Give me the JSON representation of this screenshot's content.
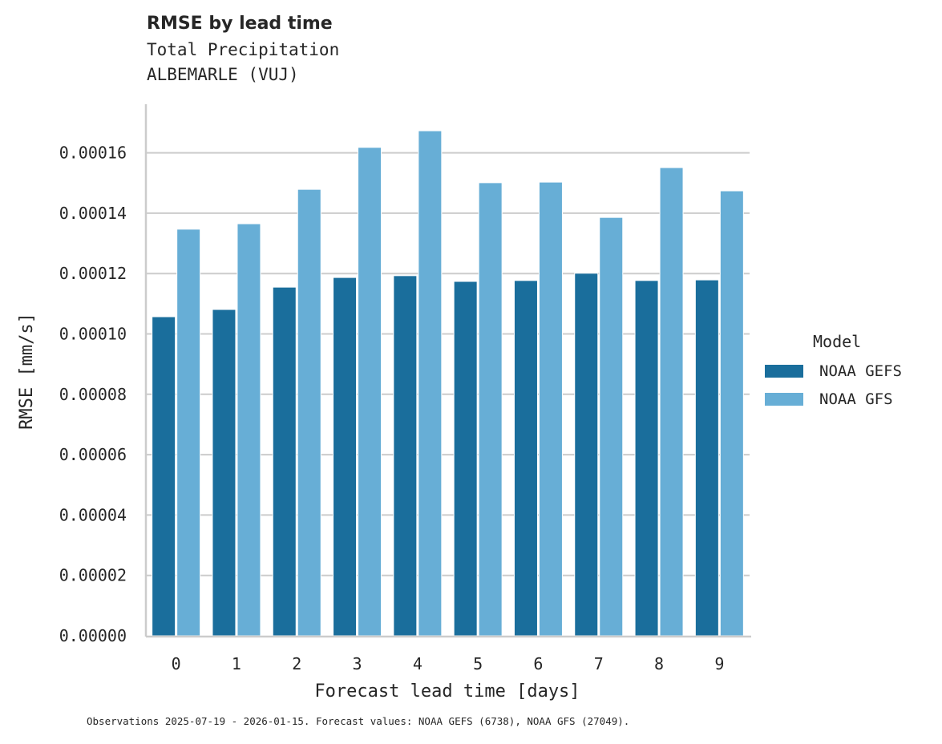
{
  "header": {
    "title": "RMSE by lead time",
    "subtitle_1": "Total Precipitation",
    "subtitle_2": "ALBEMARLE (VUJ)"
  },
  "legend": {
    "title": "Model",
    "items": [
      {
        "label": "NOAA GEFS",
        "color": "#1a6e9c"
      },
      {
        "label": "NOAA GFS",
        "color": "#67aed6"
      }
    ]
  },
  "footnote": "Observations 2025-07-19 - 2026-01-15. Forecast values: NOAA GEFS (6738), NOAA GFS (27049).",
  "chart_data": {
    "type": "bar",
    "title": "RMSE by lead time",
    "subtitle": "Total Precipitation / ALBEMARLE (VUJ)",
    "xlabel": "Forecast lead time [days]",
    "ylabel": "RMSE [mm/s]",
    "categories": [
      "0",
      "1",
      "2",
      "3",
      "4",
      "5",
      "6",
      "7",
      "8",
      "9"
    ],
    "series": [
      {
        "name": "NOAA GEFS",
        "color": "#1a6e9c",
        "values": [
          0.0001057,
          0.0001081,
          0.0001155,
          0.0001187,
          0.0001193,
          0.0001174,
          0.0001177,
          0.0001201,
          0.0001177,
          0.0001179
        ]
      },
      {
        "name": "NOAA GFS",
        "color": "#67aed6",
        "values": [
          0.0001347,
          0.0001365,
          0.0001479,
          0.0001618,
          0.0001673,
          0.0001501,
          0.0001503,
          0.0001386,
          0.0001551,
          0.0001474
        ]
      }
    ],
    "yticks": [
      "0.00000",
      "0.00002",
      "0.00004",
      "0.00006",
      "0.00008",
      "0.00010",
      "0.00012",
      "0.00014",
      "0.00016"
    ],
    "ylim": [
      0,
      0.000176
    ],
    "grid": "horizontal",
    "legend_position": "right"
  }
}
